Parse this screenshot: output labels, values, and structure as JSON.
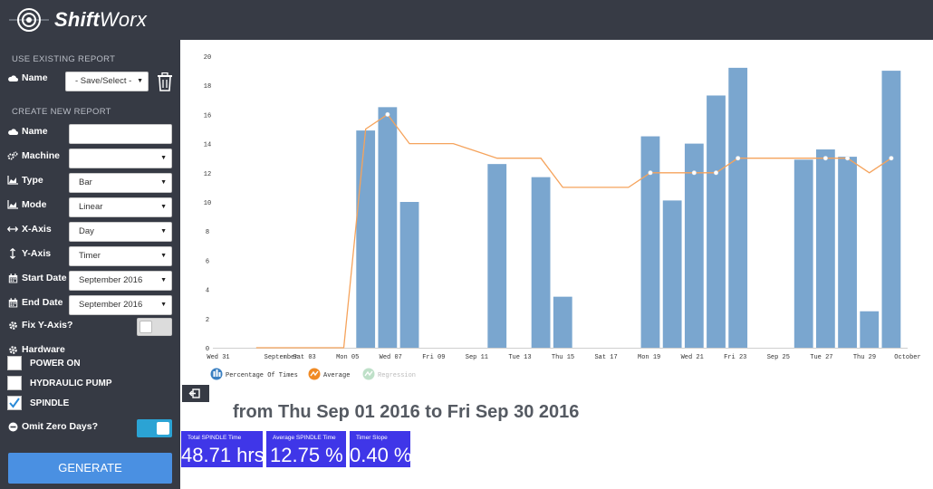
{
  "app": {
    "brand_bold": "Shift",
    "brand_regular": "Worx"
  },
  "sidebar": {
    "existing_title": "USE EXISTING REPORT",
    "existing_name_label": "Name",
    "existing_name_value": "- Save/Select -",
    "create_title": "CREATE NEW REPORT",
    "fields": [
      {
        "label": "Name",
        "value": "",
        "type": "text",
        "icon": "cloud-icon"
      },
      {
        "label": "Machine",
        "value": "",
        "type": "select",
        "icon": "gears-icon"
      },
      {
        "label": "Type",
        "value": "Bar",
        "type": "select",
        "icon": "area-chart-icon"
      },
      {
        "label": "Mode",
        "value": "Linear",
        "type": "select",
        "icon": "area-chart-icon"
      },
      {
        "label": "X-Axis",
        "value": "Day",
        "type": "select",
        "icon": "horizontal-arrows-icon"
      },
      {
        "label": "Y-Axis",
        "value": "Timer",
        "type": "select",
        "icon": "vertical-arrows-icon"
      },
      {
        "label": "Start Date",
        "value": "September 2016",
        "type": "select",
        "icon": "calendar-icon"
      },
      {
        "label": "End Date",
        "value": "September 2016",
        "type": "select",
        "icon": "calendar-icon"
      }
    ],
    "fix_y_axis_label": "Fix Y-Axis?",
    "fix_y_axis_on": false,
    "hardware_label": "Hardware",
    "hardware": [
      {
        "label": "POWER ON",
        "checked": false
      },
      {
        "label": "HYDRAULIC PUMP",
        "checked": false
      },
      {
        "label": "SPINDLE",
        "checked": true
      }
    ],
    "omit_zero_label": "Omit Zero Days?",
    "omit_zero_on": true,
    "generate_label": "GENERATE"
  },
  "chart_data": {
    "type": "bar",
    "y_ticks": [
      "0",
      "2",
      "4",
      "6",
      "8",
      "10",
      "12",
      "14",
      "16",
      "18",
      "20"
    ],
    "ylim": [
      0,
      20
    ],
    "x_ticks": [
      "Wed 31",
      "September",
      "Sat 03",
      "Mon 05",
      "Wed 07",
      "Fri 09",
      "Sep 11",
      "Tue 13",
      "Thu 15",
      "Sat 17",
      "Mon 19",
      "Wed 21",
      "Fri 23",
      "Sep 25",
      "Tue 27",
      "Thu 29",
      "October"
    ],
    "days": [
      1,
      2,
      3,
      4,
      5,
      6,
      7,
      8,
      9,
      10,
      11,
      12,
      13,
      14,
      15,
      16,
      17,
      18,
      19,
      20,
      21,
      22,
      23,
      24,
      25,
      26,
      27,
      28,
      29,
      30
    ],
    "bars": [
      0,
      0,
      0,
      0,
      0,
      14.9,
      16.5,
      10,
      0,
      0,
      0,
      12.6,
      0,
      11.7,
      3.5,
      0,
      0,
      0,
      14.5,
      10.1,
      14,
      17.3,
      19.2,
      0,
      0,
      12.9,
      13.6,
      13.1,
      2.5,
      19
    ],
    "average_line": [
      0,
      0,
      0,
      0,
      0,
      15,
      16,
      14,
      14,
      14,
      13.5,
      13,
      13,
      13,
      11,
      11,
      11,
      11,
      12,
      12,
      12,
      12,
      13,
      13,
      13,
      13,
      13,
      13,
      12,
      13
    ],
    "average_points_days": [
      7,
      19,
      21,
      22,
      23,
      27,
      28,
      30
    ],
    "legend": [
      {
        "label": "Percentage Of Times",
        "color": "#3a7fc1",
        "icon": "bar-chart-icon"
      },
      {
        "label": "Average",
        "color": "#f08a24",
        "icon": "line-chart-icon"
      },
      {
        "label": "Regression",
        "color": "#a8d5b5",
        "icon": "regression-icon"
      }
    ],
    "bar_color": "#7aa6cf",
    "avg_color": "#f5a35c"
  },
  "summary": {
    "range_text": "from Thu Sep 01 2016 to Fri Sep 30 2016",
    "stats": [
      {
        "label": "Total SPINDLE Time",
        "value": "48.71 hrs"
      },
      {
        "label": "Average SPINDLE Time",
        "value": "12.75 %"
      },
      {
        "label": "Timer Slope",
        "value": "0.40 %"
      }
    ]
  }
}
